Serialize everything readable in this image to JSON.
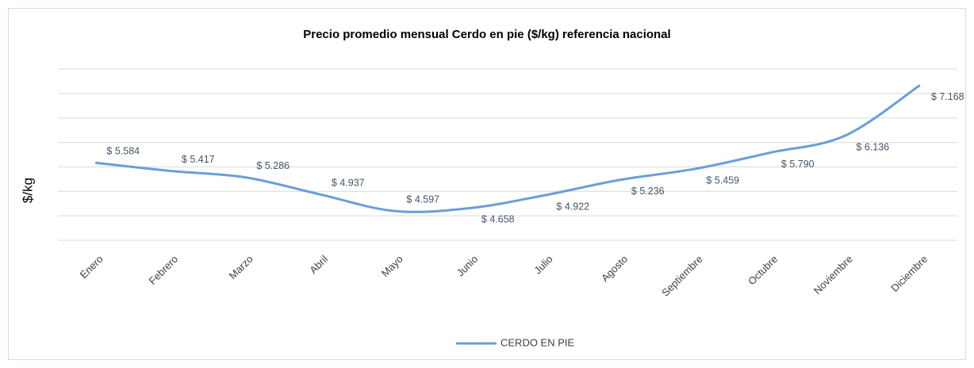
{
  "chart_data": {
    "type": "line",
    "title": "Precio promedio mensual Cerdo en pie ($/kg) referencia nacional",
    "y_label": "$/kg",
    "categories": [
      "Enero",
      "Febrero",
      "Marzo",
      "Abril",
      "Mayo",
      "Junio",
      "Julio",
      "Agosto",
      "Septiembre",
      "Octubre",
      "Noviembre",
      "Diciembre"
    ],
    "series": [
      {
        "name": "CERDO EN PIE",
        "color": "#6a9fd6",
        "values": [
          5.584,
          5.417,
          5.286,
          4.937,
          4.597,
          4.658,
          4.922,
          5.236,
          5.459,
          5.79,
          6.136,
          7.168
        ],
        "value_labels": [
          "$ 5.584",
          "$ 5.417",
          "$ 5.286",
          "$ 4.937",
          "$ 4.597",
          "$ 4.658",
          "$ 4.922",
          "$ 5.236",
          "$ 5.459",
          "$ 5.790",
          "$ 6.136",
          "$ 7.168"
        ]
      }
    ],
    "ylim": [
      4,
      7.5
    ],
    "yticks": [
      4,
      4.5,
      5,
      5.5,
      6,
      6.5,
      7,
      7.5
    ],
    "grid": true,
    "legend": "bottom"
  }
}
